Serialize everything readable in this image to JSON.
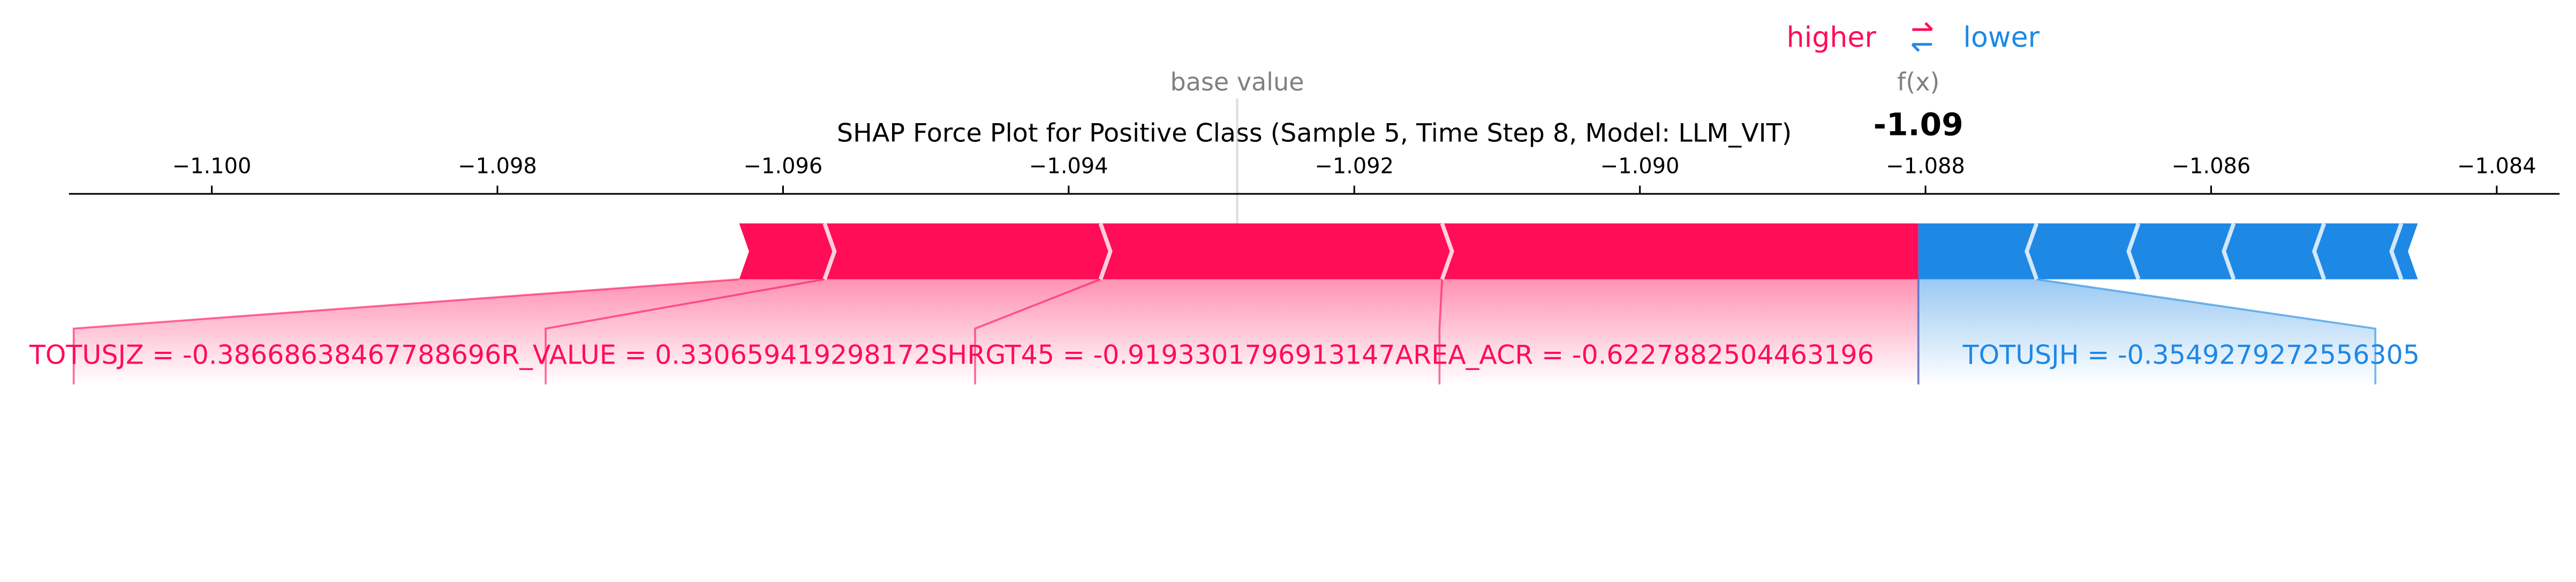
{
  "chart_data": {
    "type": "force",
    "title": "SHAP Force Plot for Positive Class (Sample 5, Time Step 8, Model: LLM_VIT)",
    "base_value_name": "base value",
    "fx_name": "f(x)",
    "base_value": -1.09282,
    "fx": {
      "value": -1.08805,
      "label": "-1.09"
    },
    "xlim": [
      -1.101,
      -1.08356
    ],
    "xticks": [
      {
        "value": -1.1,
        "label": "−1.100"
      },
      {
        "value": -1.098,
        "label": "−1.098"
      },
      {
        "value": -1.096,
        "label": "−1.096"
      },
      {
        "value": -1.094,
        "label": "−1.094"
      },
      {
        "value": -1.092,
        "label": "−1.092"
      },
      {
        "value": -1.09,
        "label": "−1.090"
      },
      {
        "value": -1.088,
        "label": "−1.088"
      },
      {
        "value": -1.086,
        "label": "−1.086"
      },
      {
        "value": -1.084,
        "label": "−1.084"
      }
    ],
    "series": [
      {
        "name": "higher",
        "color": "#ff0d57",
        "labels": [
          "AREA_ACR = -0.6227882504463196",
          "SHRGT45 = -0.9193301796913147",
          "R_VALUE = 0.330659419298172",
          "TOTUSJZ = -0.38668638467788696"
        ],
        "values": [
          0.003335,
          0.002392,
          0.001932,
          0.000598
        ]
      },
      {
        "name": "lower",
        "color": "#1e88e5",
        "labels": [
          "TOTUSJH = -0.3549279272556305",
          null,
          null,
          null,
          null,
          null
        ],
        "values": [
          -0.000828,
          -0.000713,
          -0.000667,
          -0.000633,
          -0.000541,
          -0.000115
        ]
      }
    ]
  }
}
